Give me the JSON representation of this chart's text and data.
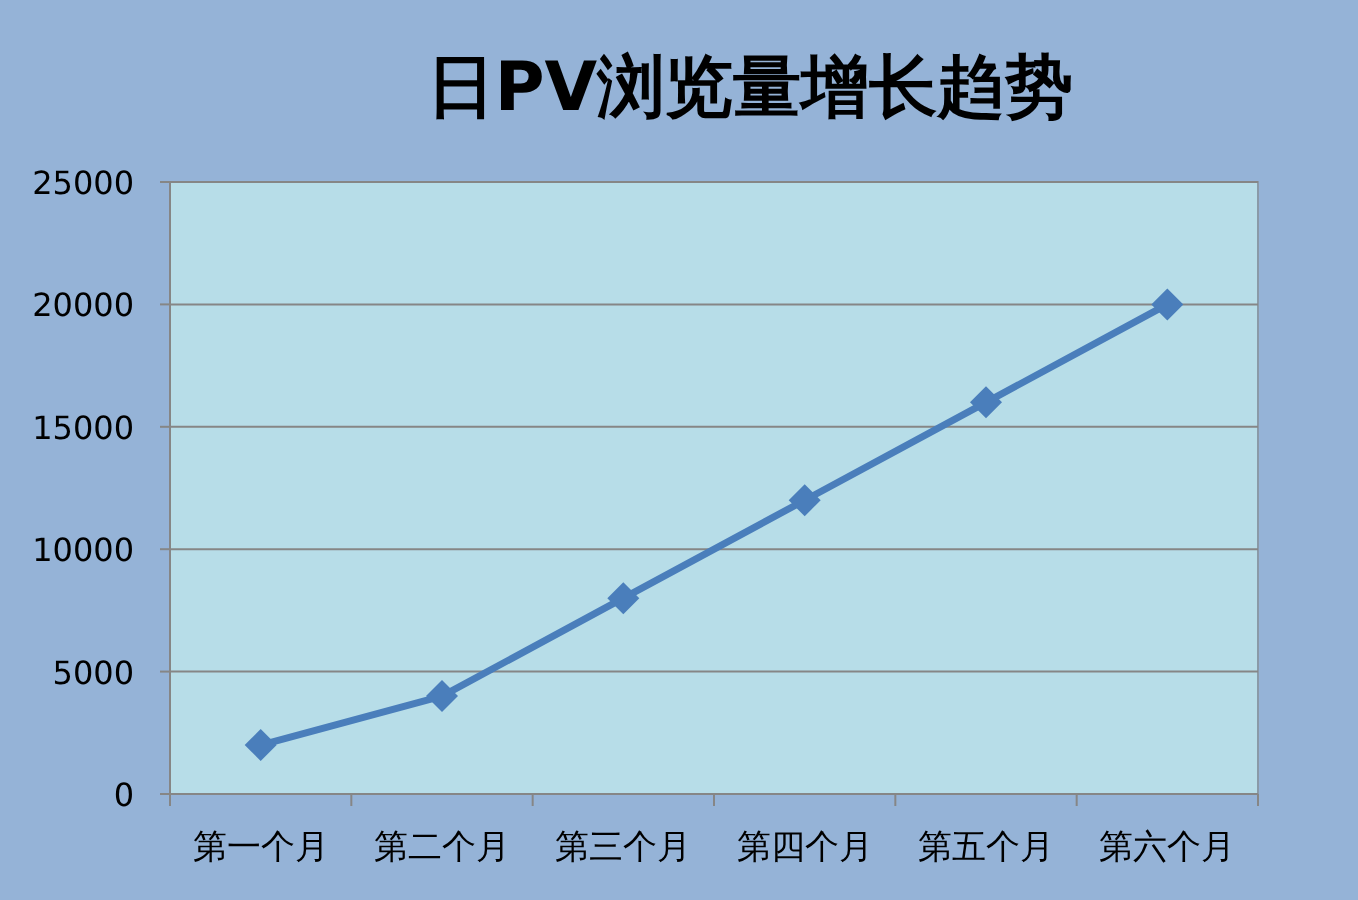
{
  "chart_data": {
    "type": "line",
    "title": "日PV浏览量增长趋势",
    "categories": [
      "第一个月",
      "第二个月",
      "第三个月",
      "第四个月",
      "第五个月",
      "第六个月"
    ],
    "series": [
      {
        "color": "#4a7ebb",
        "values": [
          2000,
          4000,
          8000,
          12000,
          16000,
          20000
        ]
      }
    ],
    "ylim": [
      0,
      25000
    ],
    "yticks": [
      0,
      5000,
      10000,
      15000,
      20000,
      25000
    ],
    "grid": "y",
    "marker": "diamond",
    "line_style": "solid"
  }
}
